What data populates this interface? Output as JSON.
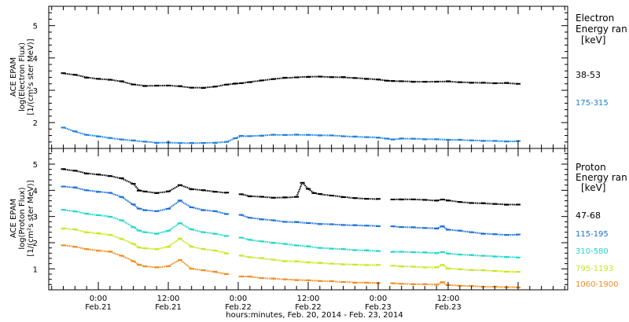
{
  "xlabel": "hours:minutes, Feb. 20, 2014 - Feb. 23, 2014",
  "x_ticks": [
    {
      "time": "0:00",
      "date": "Feb.21"
    },
    {
      "time": "12:00",
      "date": "Feb.21"
    },
    {
      "time": "0:00",
      "date": "Feb.22"
    },
    {
      "time": "12:00",
      "date": "Feb.22"
    },
    {
      "time": "0:00",
      "date": "Feb.23"
    },
    {
      "time": "12:00",
      "date": "Feb.23"
    }
  ],
  "panels": {
    "electron": {
      "ylabel_lines": [
        "ACE EPAM",
        "log(Electron Flux)",
        "[1/(cm²s ster MeV)]"
      ],
      "legend_title": [
        "Electron",
        "Energy ran",
        "[keV]"
      ],
      "y_ticks": [
        "2",
        "3",
        "4",
        "5"
      ]
    },
    "proton": {
      "ylabel_lines": [
        "ACE EPAM",
        "log(Proton Flux)",
        "[1/(cm²s ster MeV)]"
      ],
      "legend_title": [
        "Proton",
        "Energy ran",
        "[keV]"
      ],
      "y_ticks": [
        "1",
        "2",
        "3",
        "4",
        "5"
      ]
    }
  },
  "chart_data": [
    {
      "type": "scatter",
      "panel": "electron",
      "x_unit": "hours since Feb. 20, 2014 00:00",
      "xlim": [
        15.5,
        104.5
      ],
      "ylim": [
        1.2,
        5.6
      ],
      "grid": false,
      "legend_position": "right",
      "series": [
        {
          "name": "38-53",
          "color": "#000000",
          "x": [
            18,
            20,
            22,
            24,
            26,
            28,
            30,
            32,
            34,
            36,
            38,
            40,
            42,
            44,
            46,
            47.5,
            48.5,
            50,
            52,
            54,
            56,
            58,
            60,
            62,
            64,
            66,
            68,
            70,
            72,
            73.5,
            74.5,
            76,
            78,
            80,
            82,
            84,
            86,
            88,
            90,
            92,
            94,
            96
          ],
          "y": [
            3.52,
            3.48,
            3.4,
            3.35,
            3.33,
            3.27,
            3.18,
            3.14,
            3.14,
            3.15,
            3.12,
            3.08,
            3.08,
            3.11,
            3.18,
            3.2,
            3.22,
            3.26,
            3.3,
            3.35,
            3.38,
            3.4,
            3.42,
            3.42,
            3.41,
            3.4,
            3.38,
            3.36,
            3.33,
            3.3,
            3.28,
            3.28,
            3.27,
            3.26,
            3.27,
            3.27,
            3.25,
            3.24,
            3.23,
            3.22,
            3.22,
            3.2
          ]
        },
        {
          "name": "175-315",
          "color": "#1a7fe0",
          "x": [
            18,
            20,
            22,
            24,
            26,
            28,
            30,
            32,
            34,
            36,
            38,
            40,
            42,
            44,
            46,
            47.5,
            48.5,
            50,
            52,
            54,
            56,
            58,
            60,
            62,
            64,
            66,
            68,
            70,
            72,
            73.5,
            74.5,
            76,
            78,
            80,
            82,
            84,
            86,
            88,
            90,
            92,
            94,
            96
          ],
          "y": [
            1.85,
            1.72,
            1.62,
            1.58,
            1.52,
            1.48,
            1.44,
            1.41,
            1.38,
            1.38,
            1.37,
            1.36,
            1.37,
            1.38,
            1.4,
            1.52,
            1.58,
            1.58,
            1.6,
            1.62,
            1.62,
            1.62,
            1.62,
            1.61,
            1.6,
            1.58,
            1.56,
            1.55,
            1.54,
            1.5,
            1.48,
            1.5,
            1.5,
            1.49,
            1.48,
            1.47,
            1.46,
            1.45,
            1.44,
            1.43,
            1.42,
            1.42
          ]
        }
      ]
    },
    {
      "type": "scatter",
      "panel": "proton",
      "x_unit": "hours since Feb. 20, 2014 00:00",
      "xlim": [
        15.5,
        104.5
      ],
      "ylim": [
        0.2,
        5.6
      ],
      "grid": false,
      "legend_position": "right",
      "series": [
        {
          "name": "47-68",
          "color": "#000000",
          "x": [
            18,
            20,
            22,
            24,
            26,
            28,
            30,
            31,
            32,
            34,
            36,
            38,
            40,
            42,
            44,
            46,
            48.5,
            50,
            52,
            54,
            56,
            58,
            59,
            60,
            61,
            62,
            64,
            66,
            68,
            70,
            72,
            74.5,
            76,
            78,
            80,
            82,
            83,
            84,
            86,
            88,
            90,
            92,
            94,
            96
          ],
          "y": [
            4.8,
            4.75,
            4.65,
            4.6,
            4.55,
            4.45,
            4.25,
            4.0,
            3.95,
            3.9,
            3.95,
            4.2,
            4.05,
            4.0,
            3.95,
            3.9,
            3.85,
            3.78,
            3.75,
            3.72,
            3.72,
            3.75,
            4.3,
            4.05,
            3.9,
            3.85,
            3.8,
            3.75,
            3.7,
            3.68,
            3.66,
            3.65,
            3.66,
            3.65,
            3.64,
            3.6,
            3.65,
            3.62,
            3.55,
            3.52,
            3.5,
            3.48,
            3.46,
            3.45
          ]
        },
        {
          "name": "115-195",
          "color": "#1a6fd8",
          "x": [
            18,
            20,
            22,
            24,
            26,
            28,
            30,
            31,
            32,
            34,
            36,
            38,
            40,
            42,
            44,
            46,
            48.5,
            50,
            52,
            54,
            56,
            58,
            60,
            62,
            64,
            66,
            68,
            70,
            72,
            74.5,
            76,
            78,
            80,
            82,
            83,
            84,
            86,
            88,
            90,
            92,
            94,
            96
          ],
          "y": [
            4.15,
            4.1,
            4.0,
            3.95,
            3.9,
            3.75,
            3.45,
            3.3,
            3.25,
            3.2,
            3.3,
            3.6,
            3.35,
            3.25,
            3.2,
            3.1,
            3.05,
            2.95,
            2.9,
            2.85,
            2.8,
            2.78,
            2.75,
            2.72,
            2.7,
            2.68,
            2.66,
            2.65,
            2.64,
            2.62,
            2.6,
            2.58,
            2.56,
            2.55,
            2.62,
            2.5,
            2.45,
            2.4,
            2.35,
            2.32,
            2.3,
            2.3
          ]
        },
        {
          "name": "310-580",
          "color": "#1fd6c8",
          "x": [
            18,
            20,
            22,
            24,
            26,
            28,
            30,
            31,
            32,
            34,
            36,
            38,
            40,
            42,
            44,
            46,
            48.5,
            50,
            52,
            54,
            56,
            58,
            60,
            62,
            64,
            66,
            68,
            70,
            72,
            74.5,
            76,
            78,
            80,
            82,
            83,
            84,
            86,
            88,
            90,
            92,
            94,
            96
          ],
          "y": [
            3.25,
            3.2,
            3.1,
            3.05,
            3.0,
            2.85,
            2.6,
            2.45,
            2.4,
            2.35,
            2.45,
            2.75,
            2.5,
            2.4,
            2.35,
            2.25,
            2.2,
            2.1,
            2.05,
            2.0,
            1.95,
            1.9,
            1.85,
            1.8,
            1.78,
            1.75,
            1.72,
            1.7,
            1.68,
            1.66,
            1.65,
            1.64,
            1.62,
            1.6,
            1.65,
            1.58,
            1.55,
            1.52,
            1.5,
            1.48,
            1.45,
            1.44
          ]
        },
        {
          "name": "795-1193",
          "color": "#c8e61e",
          "x": [
            18,
            20,
            22,
            24,
            26,
            28,
            30,
            31,
            32,
            34,
            36,
            38,
            40,
            42,
            44,
            46,
            48.5,
            50,
            52,
            54,
            56,
            58,
            60,
            62,
            64,
            66,
            68,
            70,
            72,
            74.5,
            76,
            78,
            80,
            82,
            83,
            84,
            86,
            88,
            90,
            92,
            94,
            96
          ],
          "y": [
            2.55,
            2.5,
            2.4,
            2.35,
            2.3,
            2.15,
            1.95,
            1.82,
            1.78,
            1.75,
            1.85,
            2.15,
            1.85,
            1.75,
            1.7,
            1.6,
            1.5,
            1.45,
            1.4,
            1.35,
            1.3,
            1.28,
            1.25,
            1.22,
            1.2,
            1.18,
            1.16,
            1.15,
            1.14,
            1.12,
            1.1,
            1.08,
            1.06,
            1.05,
            1.15,
            1.02,
            0.98,
            0.96,
            0.94,
            0.92,
            0.9,
            0.88
          ]
        },
        {
          "name": "1060-1900",
          "color": "#f08c1e",
          "x": [
            18,
            20,
            22,
            24,
            26,
            28,
            30,
            31,
            32,
            34,
            36,
            38,
            40,
            42,
            44,
            46,
            48.5,
            50,
            52,
            54,
            56,
            58,
            60,
            62,
            64,
            66,
            68,
            70,
            72,
            74.5,
            76,
            78,
            80,
            82,
            83,
            84,
            86,
            88,
            90,
            92,
            94,
            96
          ],
          "y": [
            1.9,
            1.85,
            1.75,
            1.7,
            1.65,
            1.5,
            1.3,
            1.15,
            1.1,
            1.05,
            1.1,
            1.35,
            1.0,
            0.95,
            0.88,
            0.8,
            0.72,
            0.7,
            0.65,
            0.62,
            0.6,
            0.58,
            0.56,
            0.54,
            0.52,
            0.5,
            0.48,
            0.47,
            0.46,
            0.44,
            0.43,
            0.42,
            0.41,
            0.4,
            0.48,
            0.38,
            0.36,
            0.34,
            0.32,
            0.31,
            0.3,
            0.3
          ]
        }
      ]
    }
  ]
}
